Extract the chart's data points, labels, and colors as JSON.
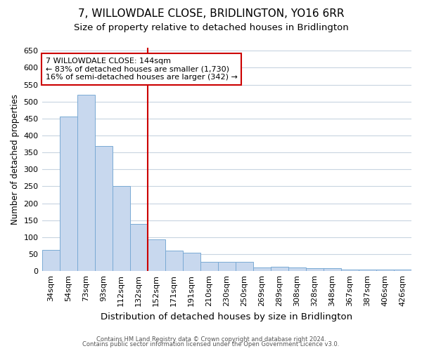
{
  "title": "7, WILLOWDALE CLOSE, BRIDLINGTON, YO16 6RR",
  "subtitle": "Size of property relative to detached houses in Bridlington",
  "xlabel": "Distribution of detached houses by size in Bridlington",
  "ylabel": "Number of detached properties",
  "categories": [
    "34sqm",
    "54sqm",
    "73sqm",
    "93sqm",
    "112sqm",
    "132sqm",
    "152sqm",
    "171sqm",
    "191sqm",
    "210sqm",
    "230sqm",
    "250sqm",
    "269sqm",
    "289sqm",
    "308sqm",
    "328sqm",
    "348sqm",
    "367sqm",
    "387sqm",
    "406sqm",
    "426sqm"
  ],
  "values": [
    63,
    455,
    520,
    368,
    250,
    140,
    93,
    60,
    55,
    27,
    27,
    27,
    10,
    12,
    10,
    8,
    8,
    5,
    5,
    5,
    5
  ],
  "bar_color": "#c8d8ee",
  "bar_edge_color": "#7aaad4",
  "vline_x_index": 6,
  "vline_color": "#cc0000",
  "annotation_title": "7 WILLOWDALE CLOSE: 144sqm",
  "annotation_line1": "← 83% of detached houses are smaller (1,730)",
  "annotation_line2": "16% of semi-detached houses are larger (342) →",
  "annotation_box_color": "#cc0000",
  "ylim": [
    0,
    660
  ],
  "yticks": [
    0,
    50,
    100,
    150,
    200,
    250,
    300,
    350,
    400,
    450,
    500,
    550,
    600,
    650
  ],
  "title_fontsize": 11,
  "subtitle_fontsize": 9.5,
  "xlabel_fontsize": 9.5,
  "ylabel_fontsize": 8.5,
  "tick_fontsize": 8,
  "annotation_fontsize": 8,
  "footer_line1": "Contains HM Land Registry data © Crown copyright and database right 2024.",
  "footer_line2": "Contains public sector information licensed under the Open Government Licence v3.0.",
  "background_color": "#ffffff",
  "plot_bg_color": "#ffffff",
  "grid_color": "#c8d4e0"
}
